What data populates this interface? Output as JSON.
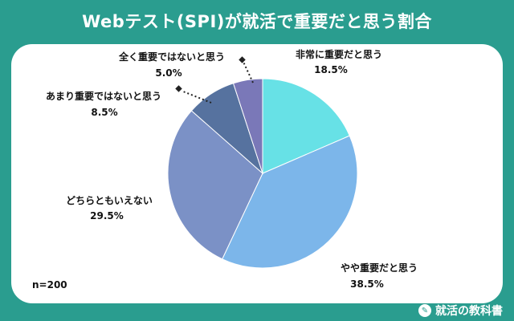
{
  "title": "Webテスト(SPI)が就活で重要だと思う割合",
  "footer": {
    "brand": "就活の教科書"
  },
  "chart_data": {
    "type": "pie",
    "title": "Webテスト(SPI)が就活で重要だと思う割合",
    "note": "n=200",
    "slices": [
      {
        "label": "非常に重要だと思う",
        "value": 18.5,
        "display": "18.5%",
        "color": "#67e1e6"
      },
      {
        "label": "やや重要だと思う",
        "value": 38.5,
        "display": "38.5%",
        "color": "#7cb6ea"
      },
      {
        "label": "どちらともいえない",
        "value": 29.5,
        "display": "29.5%",
        "color": "#7b91c6"
      },
      {
        "label": "あまり重要ではないと思う",
        "value": 8.5,
        "display": "8.5%",
        "color": "#56729f"
      },
      {
        "label": "全く重要ではないと思う",
        "value": 5.0,
        "display": "5.0%",
        "color": "#7a78b8"
      }
    ]
  }
}
